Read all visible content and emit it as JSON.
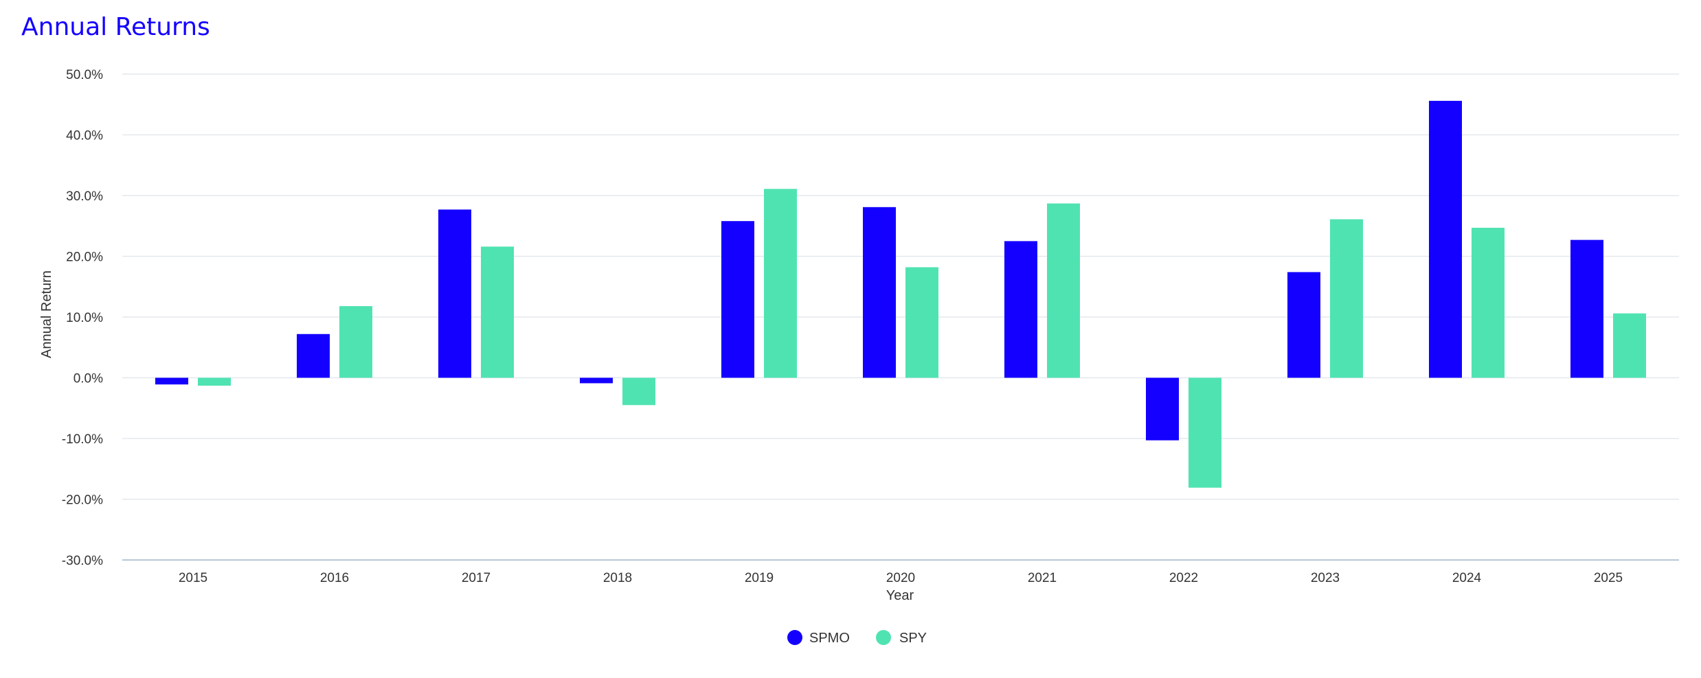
{
  "title": "Annual Returns",
  "chart_data": {
    "type": "bar",
    "title": "Annual Returns",
    "xlabel": "Year",
    "ylabel": "Annual Return",
    "categories": [
      "2015",
      "2016",
      "2017",
      "2018",
      "2019",
      "2020",
      "2021",
      "2022",
      "2023",
      "2024",
      "2025"
    ],
    "series": [
      {
        "name": "SPMO",
        "color": "#1400ff",
        "values": [
          -1.1,
          7.2,
          27.7,
          -0.9,
          25.8,
          28.1,
          22.5,
          -10.3,
          17.4,
          45.6,
          22.7
        ]
      },
      {
        "name": "SPY",
        "color": "#50e3b2",
        "values": [
          -1.3,
          11.8,
          21.6,
          -4.5,
          31.1,
          18.2,
          28.7,
          -18.1,
          26.1,
          24.7,
          10.6
        ]
      }
    ],
    "ylim": [
      -30,
      50
    ],
    "yticks": [
      -30,
      -20,
      -10,
      0,
      10,
      20,
      30,
      40,
      50
    ],
    "ytick_labels": [
      "-30.0%",
      "-20.0%",
      "-10.0%",
      "0.0%",
      "10.0%",
      "20.0%",
      "30.0%",
      "40.0%",
      "50.0%"
    ],
    "grid": true,
    "legend_position": "bottom-center"
  }
}
